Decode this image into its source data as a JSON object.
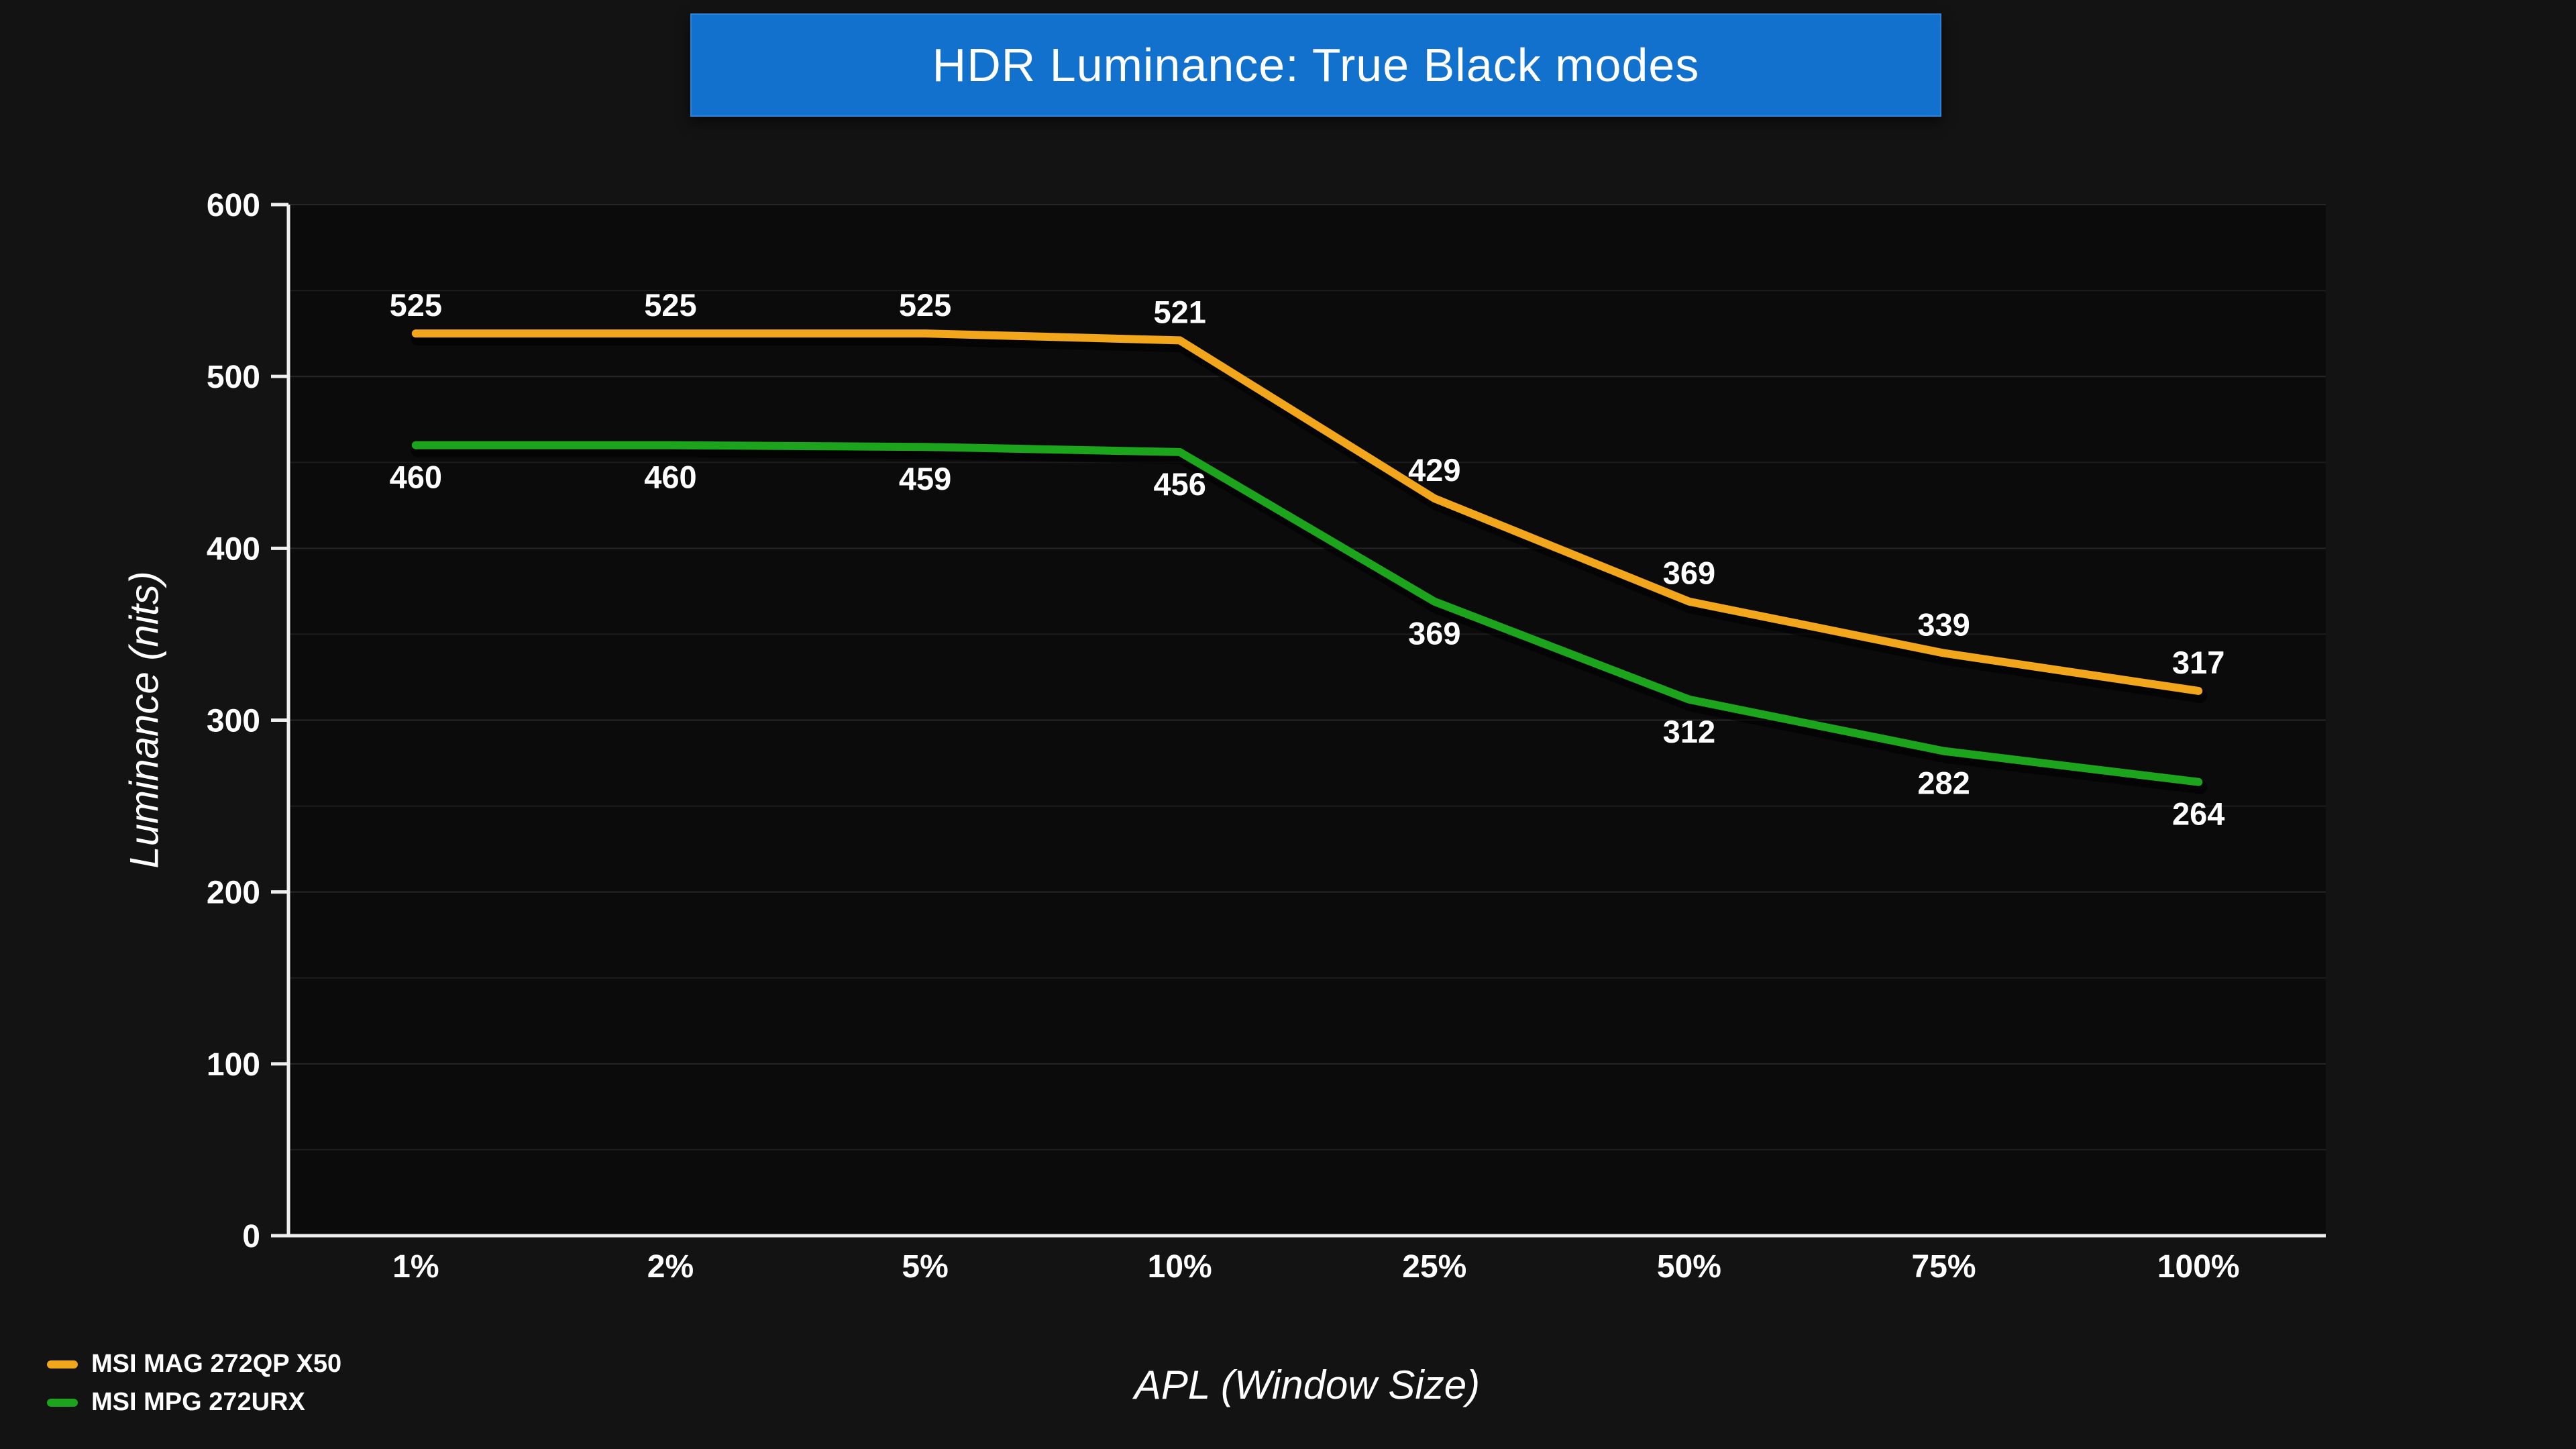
{
  "title": "HDR Luminance: True Black modes",
  "chart_data": {
    "type": "line",
    "title": "HDR Luminance: True Black modes",
    "categories": [
      "1%",
      "2%",
      "5%",
      "10%",
      "25%",
      "50%",
      "75%",
      "100%"
    ],
    "series": [
      {
        "name": "MSI MAG 272QP X50",
        "color": "#F2A61C",
        "values": [
          525,
          525,
          525,
          521,
          429,
          369,
          339,
          317
        ],
        "label_position": "above"
      },
      {
        "name": "MSI MPG 272URX",
        "color": "#1DA41D",
        "values": [
          460,
          460,
          459,
          456,
          369,
          312,
          282,
          264
        ],
        "label_position": "below"
      }
    ],
    "xlabel": "APL (Window Size)",
    "ylabel": "Luminance (nits)",
    "ylim": [
      0,
      600
    ],
    "y_major_step": 100,
    "y_minor_step": 50,
    "grid": true,
    "legend_position": "bottom-left"
  },
  "colors": {
    "background": "#131313",
    "plot_background": "#0B0B0B",
    "grid_minor": "#1C1C1C",
    "grid_major": "#272727",
    "axis": "#F0F0F0",
    "text": "#FFFFFF",
    "banner_blue": "#1271CC"
  }
}
